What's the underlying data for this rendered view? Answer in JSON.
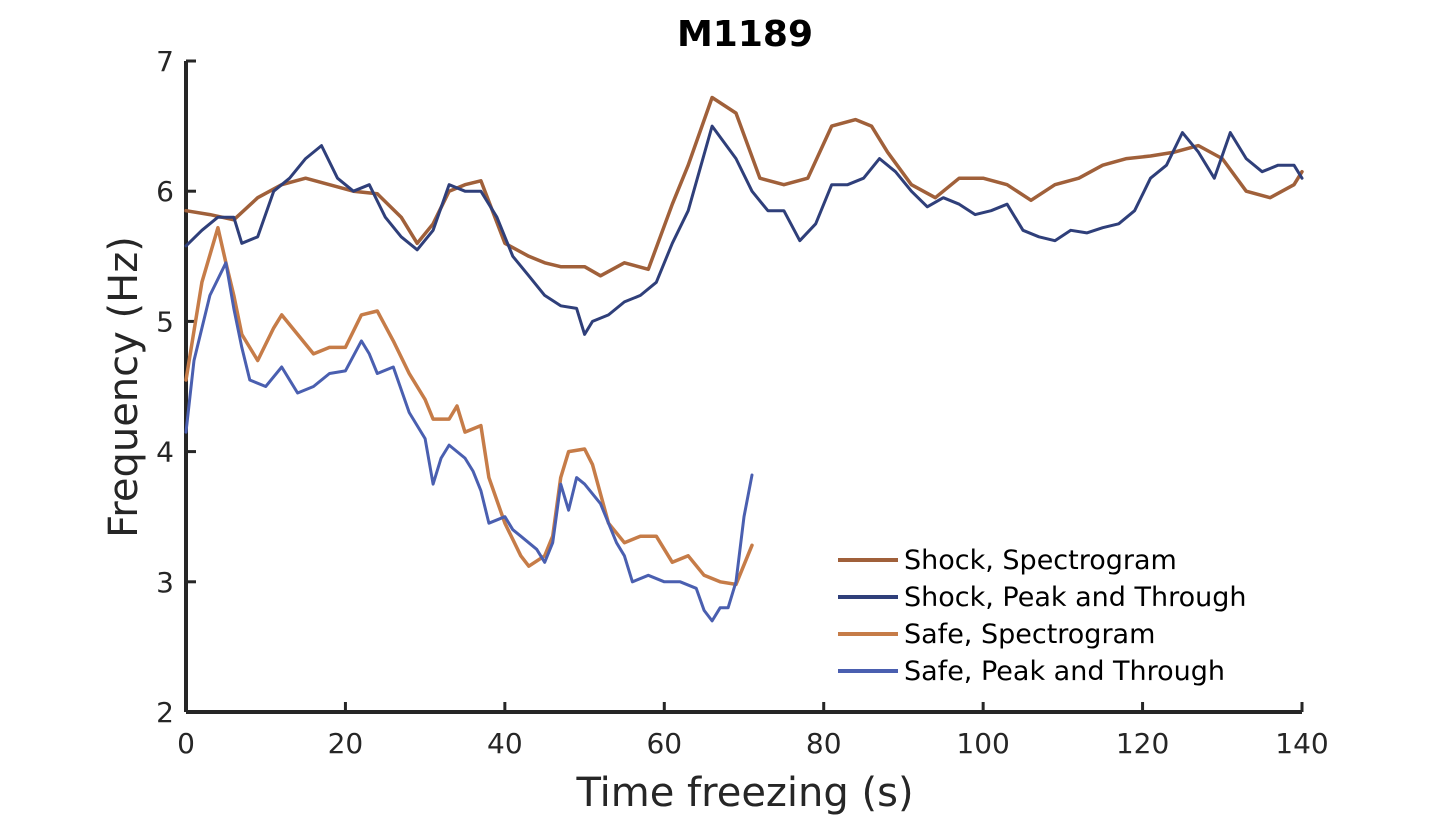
{
  "chart_data": {
    "type": "line",
    "title": "M1189",
    "xlabel": "Time freezing (s)",
    "ylabel": "Frequency (Hz)",
    "xlim": [
      0,
      140
    ],
    "ylim": [
      2,
      7
    ],
    "xticks": [
      0,
      20,
      40,
      60,
      80,
      100,
      120,
      140
    ],
    "yticks": [
      2,
      3,
      4,
      5,
      6,
      7
    ],
    "grid": false,
    "legend_position": "bottom-right",
    "series": [
      {
        "name": "Shock, Spectrogram",
        "color": "#A0603A",
        "x": [
          0,
          3,
          6,
          9,
          12,
          15,
          18,
          21,
          24,
          27,
          29,
          31,
          33,
          35,
          37,
          40,
          43,
          45,
          47,
          50,
          52,
          55,
          58,
          61,
          63,
          66,
          69,
          72,
          75,
          78,
          81,
          84,
          86,
          88,
          91,
          94,
          97,
          100,
          103,
          106,
          109,
          112,
          115,
          118,
          121,
          124,
          127,
          130,
          133,
          136,
          139,
          140
        ],
        "y": [
          5.85,
          5.82,
          5.78,
          5.95,
          6.05,
          6.1,
          6.05,
          6.0,
          5.98,
          5.8,
          5.6,
          5.75,
          6.0,
          6.05,
          6.08,
          5.6,
          5.5,
          5.45,
          5.42,
          5.42,
          5.35,
          5.45,
          5.4,
          5.9,
          6.2,
          6.72,
          6.6,
          6.1,
          6.05,
          6.1,
          6.5,
          6.55,
          6.5,
          6.3,
          6.05,
          5.95,
          6.1,
          6.1,
          6.05,
          5.93,
          6.05,
          6.1,
          6.2,
          6.25,
          6.27,
          6.3,
          6.35,
          6.25,
          6.0,
          5.95,
          6.05,
          6.15
        ]
      },
      {
        "name": "Shock, Peak and Through",
        "color": "#2F3F7A",
        "x": [
          0,
          2,
          4,
          6,
          7,
          9,
          11,
          13,
          15,
          17,
          19,
          21,
          23,
          25,
          27,
          29,
          31,
          33,
          35,
          37,
          39,
          41,
          43,
          45,
          47,
          49,
          50,
          51,
          53,
          55,
          57,
          59,
          61,
          63,
          66,
          69,
          71,
          73,
          75,
          77,
          79,
          81,
          83,
          85,
          87,
          89,
          91,
          93,
          95,
          97,
          99,
          101,
          103,
          105,
          107,
          109,
          111,
          113,
          115,
          117,
          119,
          121,
          123,
          125,
          127,
          129,
          131,
          133,
          135,
          137,
          139,
          140
        ],
        "y": [
          5.58,
          5.7,
          5.8,
          5.8,
          5.6,
          5.65,
          6.0,
          6.1,
          6.25,
          6.35,
          6.1,
          6.0,
          6.05,
          5.8,
          5.65,
          5.55,
          5.7,
          6.05,
          6.0,
          6.0,
          5.8,
          5.5,
          5.35,
          5.2,
          5.12,
          5.1,
          4.9,
          5.0,
          5.05,
          5.15,
          5.2,
          5.3,
          5.6,
          5.85,
          6.5,
          6.25,
          6.0,
          5.85,
          5.85,
          5.62,
          5.75,
          6.05,
          6.05,
          6.1,
          6.25,
          6.15,
          6.0,
          5.88,
          5.95,
          5.9,
          5.82,
          5.85,
          5.9,
          5.7,
          5.65,
          5.62,
          5.7,
          5.68,
          5.72,
          5.75,
          5.85,
          6.1,
          6.2,
          6.45,
          6.3,
          6.1,
          6.45,
          6.25,
          6.15,
          6.2,
          6.2,
          6.1
        ]
      },
      {
        "name": "Safe, Spectrogram",
        "color": "#C67C48",
        "x": [
          0,
          2,
          4,
          5,
          6,
          7,
          9,
          11,
          12,
          14,
          16,
          18,
          20,
          22,
          24,
          26,
          28,
          30,
          31,
          33,
          34,
          35,
          37,
          38,
          40,
          42,
          43,
          45,
          46,
          47,
          48,
          50,
          51,
          53,
          55,
          57,
          59,
          61,
          63,
          65,
          67,
          69,
          71
        ],
        "y": [
          4.55,
          5.3,
          5.72,
          5.45,
          5.2,
          4.9,
          4.7,
          4.95,
          5.05,
          4.9,
          4.75,
          4.8,
          4.8,
          5.05,
          5.08,
          4.85,
          4.6,
          4.4,
          4.25,
          4.25,
          4.35,
          4.15,
          4.2,
          3.8,
          3.45,
          3.2,
          3.12,
          3.2,
          3.35,
          3.8,
          4.0,
          4.02,
          3.9,
          3.45,
          3.3,
          3.35,
          3.35,
          3.15,
          3.2,
          3.05,
          3.0,
          2.98,
          3.28
        ]
      },
      {
        "name": "Safe, Peak and Through",
        "color": "#4A5FB0",
        "x": [
          0,
          1,
          3,
          5,
          6,
          7,
          8,
          10,
          12,
          14,
          16,
          18,
          20,
          22,
          23,
          24,
          26,
          28,
          30,
          31,
          32,
          33,
          35,
          36,
          37,
          38,
          40,
          41,
          42,
          44,
          45,
          46,
          47,
          48,
          49,
          50,
          52,
          54,
          55,
          56,
          58,
          60,
          62,
          64,
          65,
          66,
          67,
          68,
          69,
          70,
          71
        ],
        "y": [
          4.15,
          4.7,
          5.2,
          5.45,
          5.1,
          4.8,
          4.55,
          4.5,
          4.65,
          4.45,
          4.5,
          4.6,
          4.62,
          4.85,
          4.75,
          4.6,
          4.65,
          4.3,
          4.1,
          3.75,
          3.95,
          4.05,
          3.95,
          3.85,
          3.7,
          3.45,
          3.5,
          3.4,
          3.35,
          3.25,
          3.15,
          3.3,
          3.75,
          3.55,
          3.8,
          3.75,
          3.6,
          3.3,
          3.2,
          3.0,
          3.05,
          3.0,
          3.0,
          2.95,
          2.78,
          2.7,
          2.8,
          2.8,
          3.0,
          3.5,
          3.82
        ]
      }
    ]
  }
}
